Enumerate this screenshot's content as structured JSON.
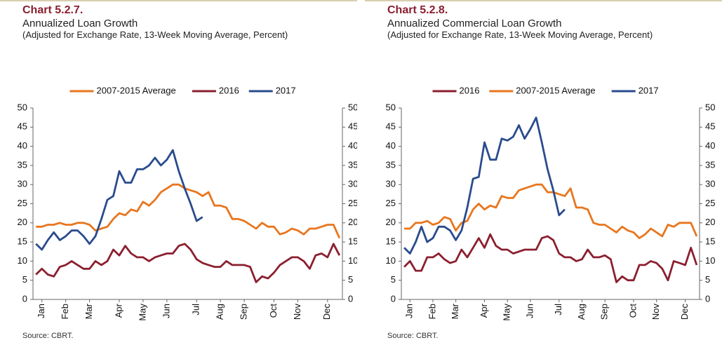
{
  "chart_data": [
    {
      "type": "line",
      "title": "Chart 5.2.7.",
      "subtitle": "Annualized Loan Growth",
      "note": "(Adjusted for Exchange Rate, 13-Week Moving Average, Percent)",
      "source": "Source: CBRT.",
      "categories": [
        null,
        "Jan",
        null,
        null,
        null,
        "Feb",
        null,
        null,
        null,
        "Mar",
        null,
        null,
        null,
        null,
        "Apr",
        null,
        null,
        null,
        "May",
        null,
        null,
        null,
        "Jun",
        null,
        null,
        null,
        null,
        "Jul",
        null,
        null,
        null,
        "Aug",
        null,
        null,
        null,
        "Sep",
        null,
        null,
        null,
        null,
        "Oct",
        null,
        null,
        null,
        "Nov",
        null,
        null,
        null,
        null,
        "Dec",
        null,
        null
      ],
      "ylim": [
        0,
        50
      ],
      "yticks": [
        0,
        5,
        10,
        15,
        20,
        25,
        30,
        35,
        40,
        45,
        50
      ],
      "y2lim": [
        0,
        50
      ],
      "y2ticks": [
        0,
        5,
        10,
        15,
        20,
        25,
        30,
        35,
        40,
        45,
        50
      ],
      "series": [
        {
          "name": "2007-2015 Average",
          "color": "#e8761e",
          "values": [
            19,
            19,
            19.5,
            19.5,
            20,
            19.5,
            19.5,
            20,
            20,
            19.5,
            18,
            18.5,
            19,
            21,
            22.5,
            22,
            23.5,
            23,
            25.5,
            24.5,
            26,
            28,
            29,
            30,
            30,
            29,
            28.5,
            28,
            27,
            28,
            24.5,
            24.5,
            24,
            21,
            21,
            20.5,
            19.5,
            18.5,
            20,
            19,
            19,
            17,
            17.5,
            18.5,
            18,
            17,
            18.5,
            18.5,
            19,
            19.5,
            19.5,
            16
          ]
        },
        {
          "name": "2016",
          "color": "#8b1f2f",
          "values": [
            6.5,
            8,
            6.5,
            6,
            8.5,
            9,
            10,
            9,
            8,
            8,
            10,
            9,
            10,
            13,
            11.5,
            14,
            12,
            11,
            11,
            10,
            11,
            11.5,
            12,
            12,
            14,
            14.5,
            13,
            10.5,
            9.5,
            9,
            8.5,
            8.5,
            10,
            9,
            9,
            9,
            8.5,
            4.5,
            6,
            5.5,
            7,
            9,
            10,
            11,
            11,
            10,
            8,
            11.5,
            12,
            11,
            14.5,
            11.5
          ]
        },
        {
          "name": "2017",
          "color": "#2a4b8d",
          "values": [
            14.5,
            13,
            15.5,
            17.5,
            15.5,
            16.5,
            18,
            18,
            16.5,
            14.5,
            16.5,
            21,
            26,
            27,
            33.5,
            30.5,
            30.5,
            34,
            34,
            35,
            37,
            35,
            36.5,
            39,
            33.5,
            29,
            25,
            20.5,
            21.5,
            null,
            null,
            null,
            null,
            null,
            null,
            null,
            null,
            null,
            null,
            null,
            null,
            null,
            null,
            null,
            null,
            null,
            null,
            null,
            null,
            null,
            null,
            null
          ]
        }
      ]
    },
    {
      "type": "line",
      "title": "Chart 5.2.8.",
      "subtitle": "Annualized Commercial Loan Growth",
      "note": "(Adjusted for Exchange Rate, 13-Week Moving Average, Percent)",
      "source": "Source: CBRT.",
      "categories": [
        null,
        "Jan",
        null,
        null,
        null,
        "Feb",
        null,
        null,
        null,
        "Mar",
        null,
        null,
        null,
        null,
        "Apr",
        null,
        null,
        null,
        "May",
        null,
        null,
        null,
        "Jun",
        null,
        null,
        null,
        null,
        "Jul",
        null,
        null,
        null,
        "Aug",
        null,
        null,
        null,
        "Sep",
        null,
        null,
        null,
        null,
        "Oct",
        null,
        null,
        null,
        "Nov",
        null,
        null,
        null,
        null,
        "Dec",
        null,
        null
      ],
      "ylim": [
        0,
        50
      ],
      "yticks": [
        0,
        5,
        10,
        15,
        20,
        25,
        30,
        35,
        40,
        45,
        50
      ],
      "y2lim": [
        0,
        50
      ],
      "y2ticks": [
        0,
        5,
        10,
        15,
        20,
        25,
        30,
        35,
        40,
        45,
        50
      ],
      "series": [
        {
          "name": "2016",
          "color": "#8b1f2f",
          "values": [
            8.5,
            10,
            7.5,
            7.5,
            11,
            11,
            12,
            10.5,
            9.5,
            10,
            13,
            11,
            13.5,
            16,
            13.5,
            17,
            14,
            13,
            13,
            12,
            12.5,
            13,
            13,
            13,
            16,
            16.5,
            15.5,
            12,
            11,
            11,
            10,
            10.5,
            13,
            11,
            11,
            11.5,
            10.5,
            4.5,
            6,
            5,
            5,
            9,
            9,
            10,
            9.5,
            8,
            5,
            10,
            9.5,
            9,
            13.5,
            9
          ]
        },
        {
          "name": "2007-2015 Average",
          "color": "#e8761e",
          "values": [
            18.5,
            18.5,
            20,
            20,
            20.5,
            19.5,
            20,
            21.5,
            21,
            18,
            20,
            20.5,
            23.5,
            25,
            23.5,
            24.5,
            24,
            27,
            26.5,
            26.5,
            28.5,
            29,
            29.5,
            30,
            30,
            28,
            28,
            27.5,
            27,
            29,
            24,
            24,
            23.5,
            20,
            19.5,
            19.5,
            18.5,
            17.5,
            19,
            18,
            17.5,
            16,
            17,
            18.5,
            17.5,
            16.5,
            19.5,
            19,
            20,
            20,
            20,
            16.5
          ]
        },
        {
          "name": "2017",
          "color": "#2a4b8d",
          "values": [
            13.5,
            12,
            15,
            19,
            15,
            16,
            19,
            19,
            18,
            15.5,
            18,
            24,
            31.5,
            32,
            41,
            36.5,
            36.5,
            42,
            41.5,
            42.5,
            45.5,
            42,
            44.5,
            47.5,
            41,
            34,
            28.5,
            22,
            23.5,
            null,
            null,
            null,
            null,
            null,
            null,
            null,
            null,
            null,
            null,
            null,
            null,
            null,
            null,
            null,
            null,
            null,
            null,
            null,
            null,
            null,
            null,
            null
          ]
        }
      ]
    }
  ]
}
